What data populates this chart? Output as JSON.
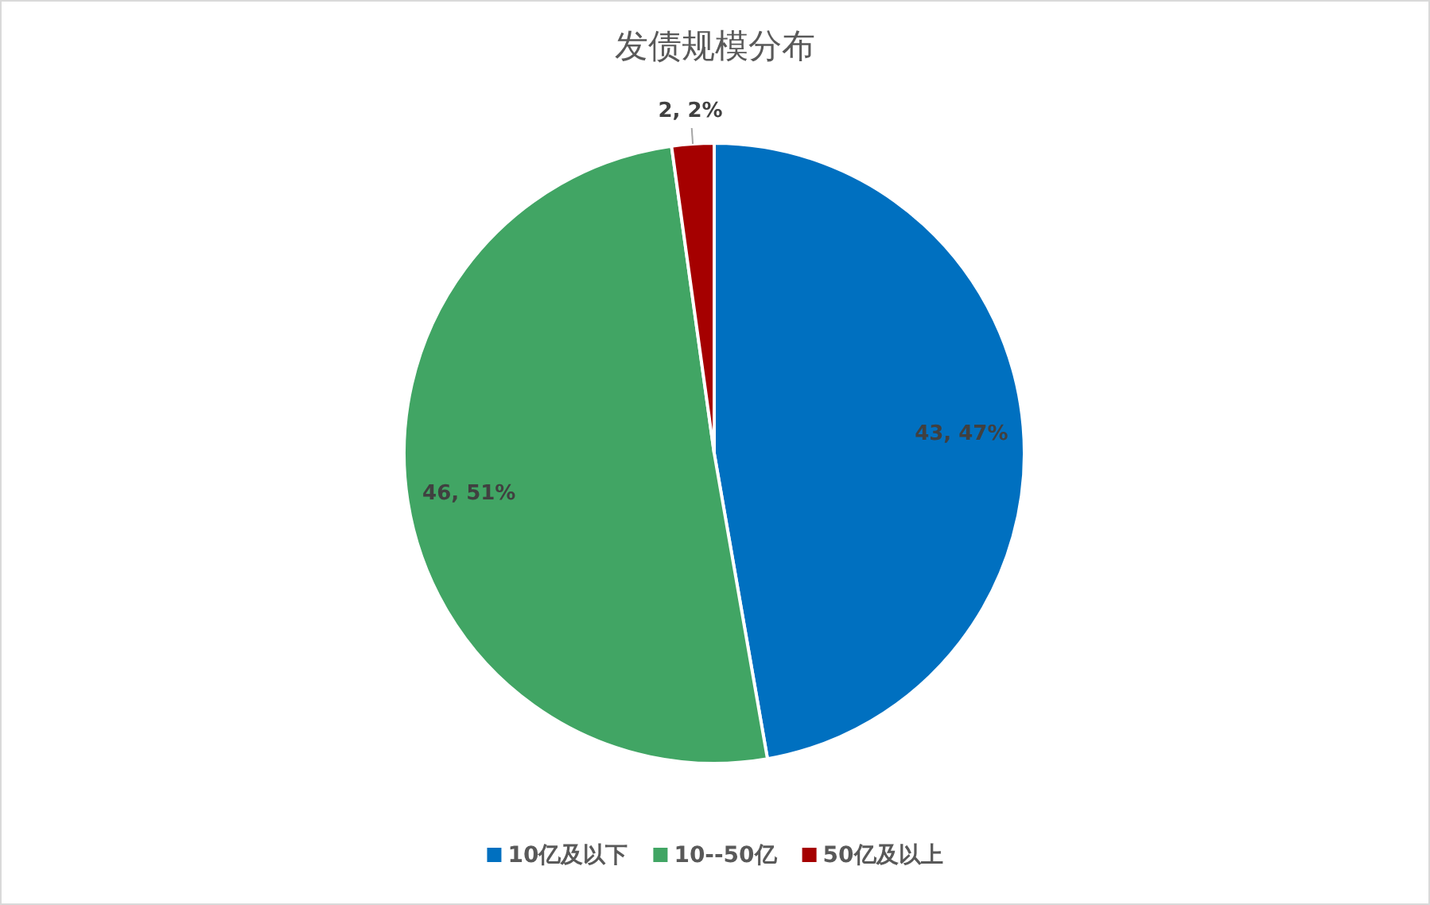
{
  "chart_data": {
    "type": "pie",
    "title": "发债规模分布",
    "categories": [
      "10亿及以下",
      "10--50亿",
      "50亿及以上"
    ],
    "values": [
      43,
      46,
      2
    ],
    "colors": [
      "#0070c0",
      "#41a564",
      "#a50000"
    ],
    "value_labels": [
      "43, 47%",
      "46, 51%",
      "2, 2%"
    ],
    "legend": "bottom"
  }
}
